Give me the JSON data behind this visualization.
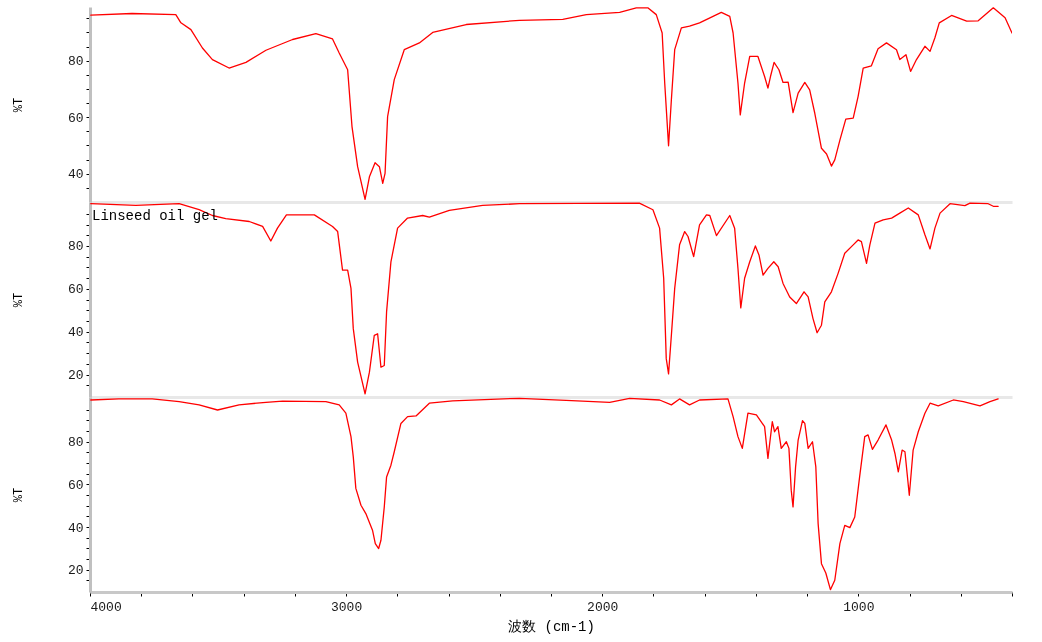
{
  "chart_data": [
    {
      "type": "line",
      "xlim": [
        4000,
        400
      ],
      "ylim": [
        30,
        99
      ],
      "ylabel": "%T",
      "tick_labels": "y",
      "yticks": [
        {
          "value": 35,
          "label": null
        },
        40,
        {
          "value": 45,
          "label": null
        },
        {
          "value": 50,
          "label": null
        },
        {
          "value": 55,
          "label": null
        },
        60,
        {
          "value": 65,
          "label": null
        },
        {
          "value": 70,
          "label": null
        },
        {
          "value": 75,
          "label": null
        },
        80,
        {
          "value": 85,
          "label": null
        },
        {
          "value": 90,
          "label": null
        },
        {
          "value": 95,
          "label": null
        }
      ],
      "series": [
        {
          "color": "#ff0000",
          "x": [
            3997,
            3836,
            3665,
            3645,
            3606,
            3561,
            3522,
            3457,
            3391,
            3313,
            3209,
            3118,
            3053,
            3027,
            2994,
            2977,
            2955,
            2926,
            2909,
            2887,
            2870,
            2857,
            2848,
            2838,
            2812,
            2773,
            2714,
            2662,
            2531,
            2323,
            2154,
            2062,
            1932,
            1867,
            1822,
            1789,
            1766,
            1756,
            1741,
            1730,
            1717,
            1691,
            1659,
            1620,
            1535,
            1502,
            1489,
            1470,
            1461,
            1444,
            1424,
            1392,
            1366,
            1353,
            1343,
            1329,
            1310,
            1294,
            1274,
            1255,
            1235,
            1209,
            1190,
            1170,
            1144,
            1124,
            1105,
            1092,
            1072,
            1049,
            1020,
            1001,
            981,
            949,
            923,
            890,
            851,
            838,
            814,
            796,
            773,
            740,
            720,
            701,
            684,
            636,
            577,
            532,
            473,
            427,
            400
          ],
          "values": [
            96.1,
            96.7,
            96.3,
            93.4,
            91.0,
            84.5,
            80.4,
            77.4,
            79.4,
            83.7,
            87.5,
            89.6,
            87.7,
            82.7,
            76.8,
            56.7,
            42.5,
            30.9,
            38.9,
            43.9,
            42.5,
            36.6,
            40.1,
            60.2,
            73.3,
            83.9,
            86.3,
            90.0,
            92.8,
            94.3,
            94.6,
            96.3,
            97.1,
            98.7,
            98.7,
            96.3,
            89.8,
            72.1,
            49.9,
            66.2,
            83.9,
            91.6,
            92.2,
            93.4,
            97.1,
            95.7,
            89.8,
            72.1,
            60.8,
            72.1,
            81.5,
            81.5,
            74.4,
            70.3,
            74.4,
            79.4,
            76.8,
            72.3,
            72.4,
            61.6,
            68.5,
            72.3,
            69.7,
            61.4,
            49.0,
            47.0,
            42.7,
            44.9,
            51.9,
            59.3,
            59.7,
            67.3,
            77.4,
            78.2,
            84.2,
            86.3,
            83.9,
            80.4,
            82.1,
            76.2,
            80.4,
            85.1,
            83.3,
            88.1,
            93.4,
            96.0,
            94.0,
            94.1,
            98.7,
            95.2,
            89.8
          ]
        }
      ]
    },
    {
      "type": "line",
      "xlim": [
        4000,
        400
      ],
      "ylim": [
        9.5,
        100.5
      ],
      "ylabel": "%T",
      "tick_labels": "y",
      "yticks": [
        {
          "value": 15,
          "label": null
        },
        20,
        {
          "value": 25,
          "label": null
        },
        {
          "value": 30,
          "label": null
        },
        {
          "value": 35,
          "label": null
        },
        40,
        {
          "value": 45,
          "label": null
        },
        {
          "value": 50,
          "label": null
        },
        {
          "value": 55,
          "label": null
        },
        60,
        {
          "value": 65,
          "label": null
        },
        {
          "value": 70,
          "label": null
        },
        {
          "value": 75,
          "label": null
        },
        80,
        {
          "value": 85,
          "label": null
        },
        {
          "value": 90,
          "label": null
        },
        {
          "value": 95,
          "label": null
        }
      ],
      "series": [
        {
          "name": "Linseed oil gel",
          "color": "#ff0000",
          "x": [
            3997,
            3821,
            3652,
            3574,
            3522,
            3470,
            3378,
            3326,
            3294,
            3268,
            3233,
            3124,
            3053,
            3033,
            3014,
            2994,
            2981,
            2972,
            2955,
            2926,
            2909,
            2890,
            2877,
            2864,
            2851,
            2842,
            2825,
            2799,
            2760,
            2701,
            2675,
            2597,
            2467,
            2323,
            1855,
            1802,
            1776,
            1760,
            1750,
            1741,
            1730,
            1717,
            1698,
            1678,
            1665,
            1643,
            1620,
            1593,
            1580,
            1554,
            1502,
            1483,
            1470,
            1459,
            1444,
            1424,
            1402,
            1388,
            1372,
            1353,
            1330,
            1313,
            1294,
            1268,
            1242,
            1212,
            1196,
            1177,
            1161,
            1144,
            1131,
            1105,
            1079,
            1053,
            1020,
            1001,
            988,
            968,
            955,
            935,
            903,
            870,
            838,
            805,
            766,
            740,
            720,
            701,
            681,
            642,
            584,
            564,
            493,
            473,
            454
          ],
          "values": [
            99.7,
            98.9,
            99.7,
            96.9,
            94.2,
            92.7,
            91.4,
            89.1,
            82.3,
            88.3,
            94.5,
            94.5,
            89.1,
            86.7,
            68.7,
            68.7,
            60.2,
            41.4,
            25.8,
            11.0,
            21.1,
            38.3,
            39.0,
            23.4,
            24.2,
            49.2,
            72.6,
            88.3,
            93.0,
            94.2,
            93.4,
            96.6,
            98.9,
            99.7,
            100.0,
            96.9,
            88.3,
            64.9,
            27.4,
            20.3,
            38.3,
            60.2,
            80.5,
            86.7,
            84.4,
            75.0,
            89.8,
            94.5,
            94.2,
            84.8,
            94.2,
            88.3,
            69.5,
            51.1,
            64.9,
            72.6,
            80.0,
            75.8,
            66.4,
            69.5,
            72.6,
            70.3,
            62.5,
            56.2,
            53.1,
            58.6,
            56.2,
            46.1,
            39.5,
            43.0,
            53.9,
            58.6,
            67.2,
            76.6,
            80.5,
            82.8,
            82.0,
            71.9,
            80.5,
            90.6,
            92.2,
            93.0,
            95.3,
            97.7,
            94.5,
            85.2,
            78.6,
            88.3,
            95.3,
            99.7,
            98.8,
            100.0,
            99.7,
            98.5,
            98.5
          ]
        }
      ]
    },
    {
      "type": "line",
      "xlim": [
        4000,
        400
      ],
      "ylim": [
        9.5,
        101
      ],
      "ylabel": "%T",
      "xlabel": "波数 (cm-1)",
      "xticks": [
        4000,
        {
          "value": 3800,
          "label": null
        },
        {
          "value": 3600,
          "label": null
        },
        {
          "value": 3400,
          "label": null
        },
        {
          "value": 3200,
          "label": null
        },
        3000,
        {
          "value": 2800,
          "label": null
        },
        {
          "value": 2600,
          "label": null
        },
        {
          "value": 2400,
          "label": null
        },
        {
          "value": 2200,
          "label": null
        },
        2000,
        {
          "value": 1800,
          "label": null
        },
        {
          "value": 1600,
          "label": null
        },
        {
          "value": 1400,
          "label": null
        },
        {
          "value": 1200,
          "label": null
        },
        1000,
        {
          "value": 800,
          "label": null
        },
        {
          "value": 600,
          "label": null
        },
        {
          "value": 400,
          "label": null
        }
      ],
      "yticks": [
        {
          "value": 15,
          "label": null
        },
        20,
        {
          "value": 25,
          "label": null
        },
        {
          "value": 30,
          "label": null
        },
        {
          "value": 35,
          "label": null
        },
        40,
        {
          "value": 45,
          "label": null
        },
        {
          "value": 50,
          "label": null
        },
        {
          "value": 55,
          "label": null
        },
        60,
        {
          "value": 65,
          "label": null
        },
        {
          "value": 70,
          "label": null
        },
        {
          "value": 75,
          "label": null
        },
        80,
        {
          "value": 85,
          "label": null
        },
        {
          "value": 90,
          "label": null
        },
        {
          "value": 95,
          "label": null
        }
      ],
      "series": [
        {
          "color": "#ff0000",
          "x": [
            3997,
            3887,
            3757,
            3652,
            3574,
            3502,
            3418,
            3313,
            3248,
            3079,
            3027,
            3001,
            2981,
            2972,
            2962,
            2942,
            2923,
            2897,
            2886,
            2873,
            2864,
            2851,
            2842,
            2825,
            2812,
            2786,
            2760,
            2727,
            2675,
            2584,
            2323,
            2141,
            1971,
            1893,
            1776,
            1730,
            1698,
            1659,
            1620,
            1509,
            1489,
            1470,
            1453,
            1431,
            1398,
            1366,
            1353,
            1336,
            1327,
            1314,
            1301,
            1281,
            1271,
            1262,
            1255,
            1245,
            1235,
            1218,
            1209,
            1196,
            1179,
            1166,
            1157,
            1144,
            1127,
            1109,
            1092,
            1072,
            1053,
            1033,
            1014,
            995,
            975,
            962,
            945,
            923,
            892,
            870,
            857,
            844,
            829,
            818,
            801,
            786,
            766,
            740,
            720,
            688,
            629,
            590,
            525,
            486,
            454
          ],
          "values": [
            99.6,
            100.1,
            100.1,
            98.8,
            97.3,
            94.9,
            97.3,
            98.5,
            99.1,
            98.8,
            97.3,
            93.4,
            82.4,
            72.9,
            58.1,
            50.2,
            46.3,
            38.5,
            32.2,
            29.9,
            33.8,
            49.4,
            63.5,
            69.0,
            75.3,
            88.6,
            91.8,
            92.1,
            98.1,
            99.2,
            100.4,
            99.4,
            98.5,
            100.4,
            99.6,
            97.3,
            100.1,
            97.3,
            99.6,
            100.1,
            91.8,
            82.4,
            76.9,
            93.4,
            92.6,
            87.1,
            72.2,
            89.4,
            84.7,
            87.1,
            76.9,
            80.0,
            76.9,
            57.3,
            49.4,
            68.2,
            80.8,
            89.9,
            88.6,
            76.9,
            80.0,
            68.2,
            41.6,
            22.8,
            18.4,
            10.6,
            15.0,
            32.2,
            40.8,
            39.7,
            44.7,
            63.5,
            82.4,
            83.2,
            76.4,
            80.8,
            87.9,
            80.8,
            74.5,
            65.9,
            76.1,
            75.3,
            54.9,
            76.1,
            84.7,
            93.4,
            98.1,
            96.8,
            99.6,
            98.8,
            96.8,
            98.8,
            100.1
          ]
        }
      ]
    }
  ]
}
